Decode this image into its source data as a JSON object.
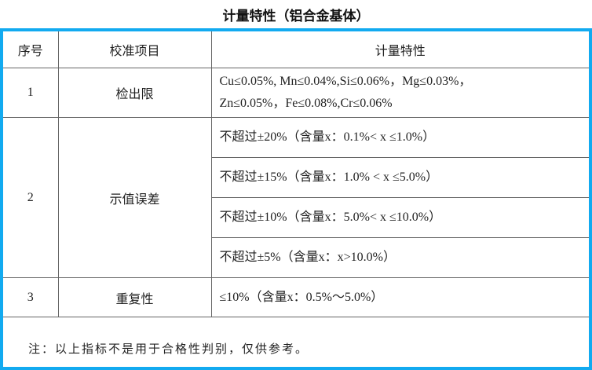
{
  "title": "计量特性（铝合金基体）",
  "columns": [
    "序号",
    "校准项目",
    "计量特性"
  ],
  "rows": [
    {
      "no": "1",
      "item": "检出限",
      "specs": [
        "Cu≤0.05%, Mn≤0.04%,Si≤0.06%，Mg≤0.03%，",
        "Zn≤0.05%，Fe≤0.08%,Cr≤0.06%"
      ]
    },
    {
      "no": "2",
      "item": "示值误差",
      "specs": [
        "不超过±20%（含量x：0.1%< x ≤1.0%）",
        "不超过±15%（含量x：1.0% < x ≤5.0%）",
        "不超过±10%（含量x：5.0%< x ≤10.0%）",
        "不超过±5%（含量x：x>10.0%）"
      ]
    },
    {
      "no": "3",
      "item": "重复性",
      "specs": [
        "≤10%（含量x：0.5%～5.0%）"
      ]
    }
  ],
  "note": "注：以上指标不是用于合格性判别，仅供参考。",
  "colors": {
    "frame": "#12aaf0"
  }
}
